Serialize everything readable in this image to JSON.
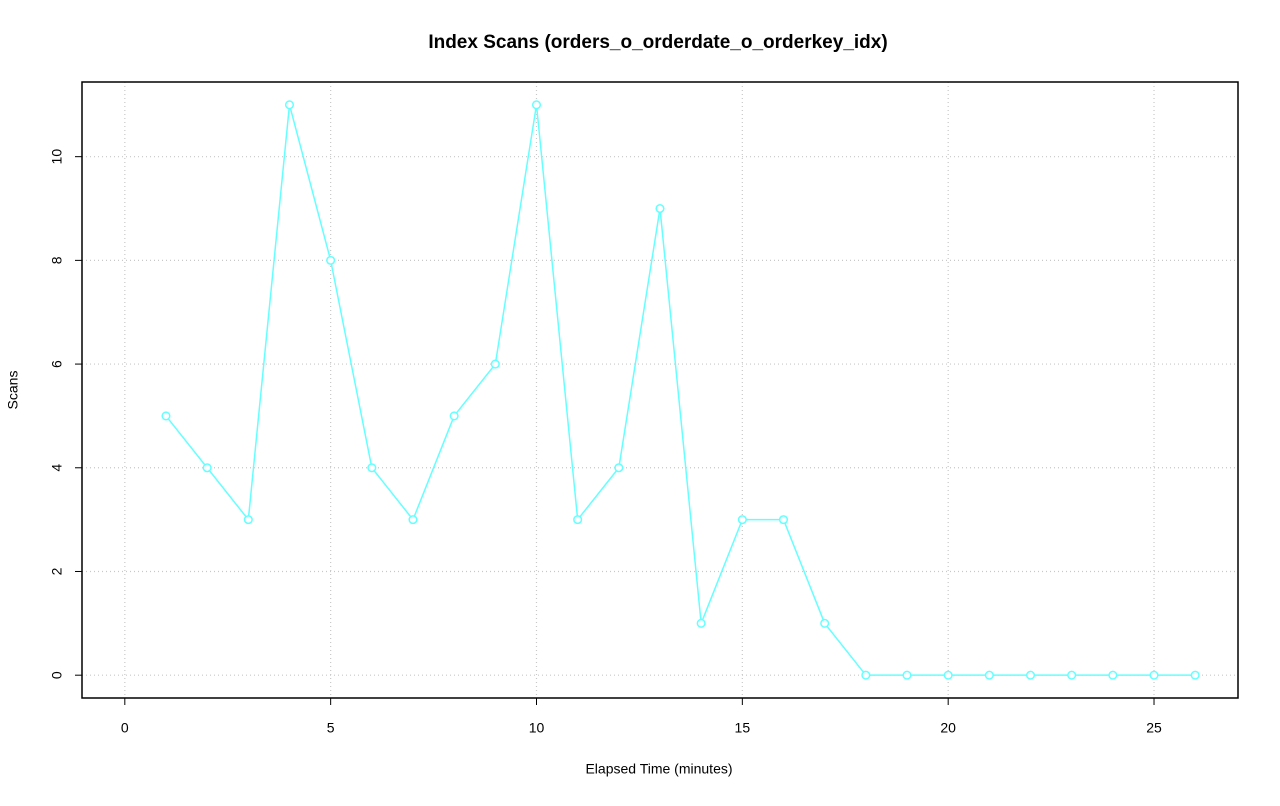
{
  "chart_data": {
    "type": "line",
    "title": "Index Scans (orders_o_orderdate_o_orderkey_idx)",
    "x_label": "Elapsed Time (minutes)",
    "y_label": "Scans",
    "x": [
      1,
      2,
      3,
      4,
      5,
      6,
      7,
      8,
      9,
      10,
      11,
      12,
      13,
      14,
      15,
      16,
      17,
      18,
      19,
      20,
      21,
      22,
      23,
      24,
      25,
      26
    ],
    "series": [
      {
        "name": "Scans",
        "color": "#66ffff",
        "values": [
          5,
          4,
          3,
          11,
          8,
          4,
          3,
          5,
          6,
          11,
          3,
          4,
          9,
          1,
          3,
          3,
          1,
          0,
          0,
          0,
          0,
          0,
          0,
          0,
          0,
          0
        ]
      }
    ],
    "xlim": [
      -1.04,
      27.04
    ],
    "ylim": [
      -0.44,
      11.44
    ],
    "xticks": [
      0,
      5,
      10,
      15,
      20,
      25
    ],
    "yticks": [
      0,
      2,
      4,
      6,
      8,
      10
    ],
    "grid": true
  }
}
